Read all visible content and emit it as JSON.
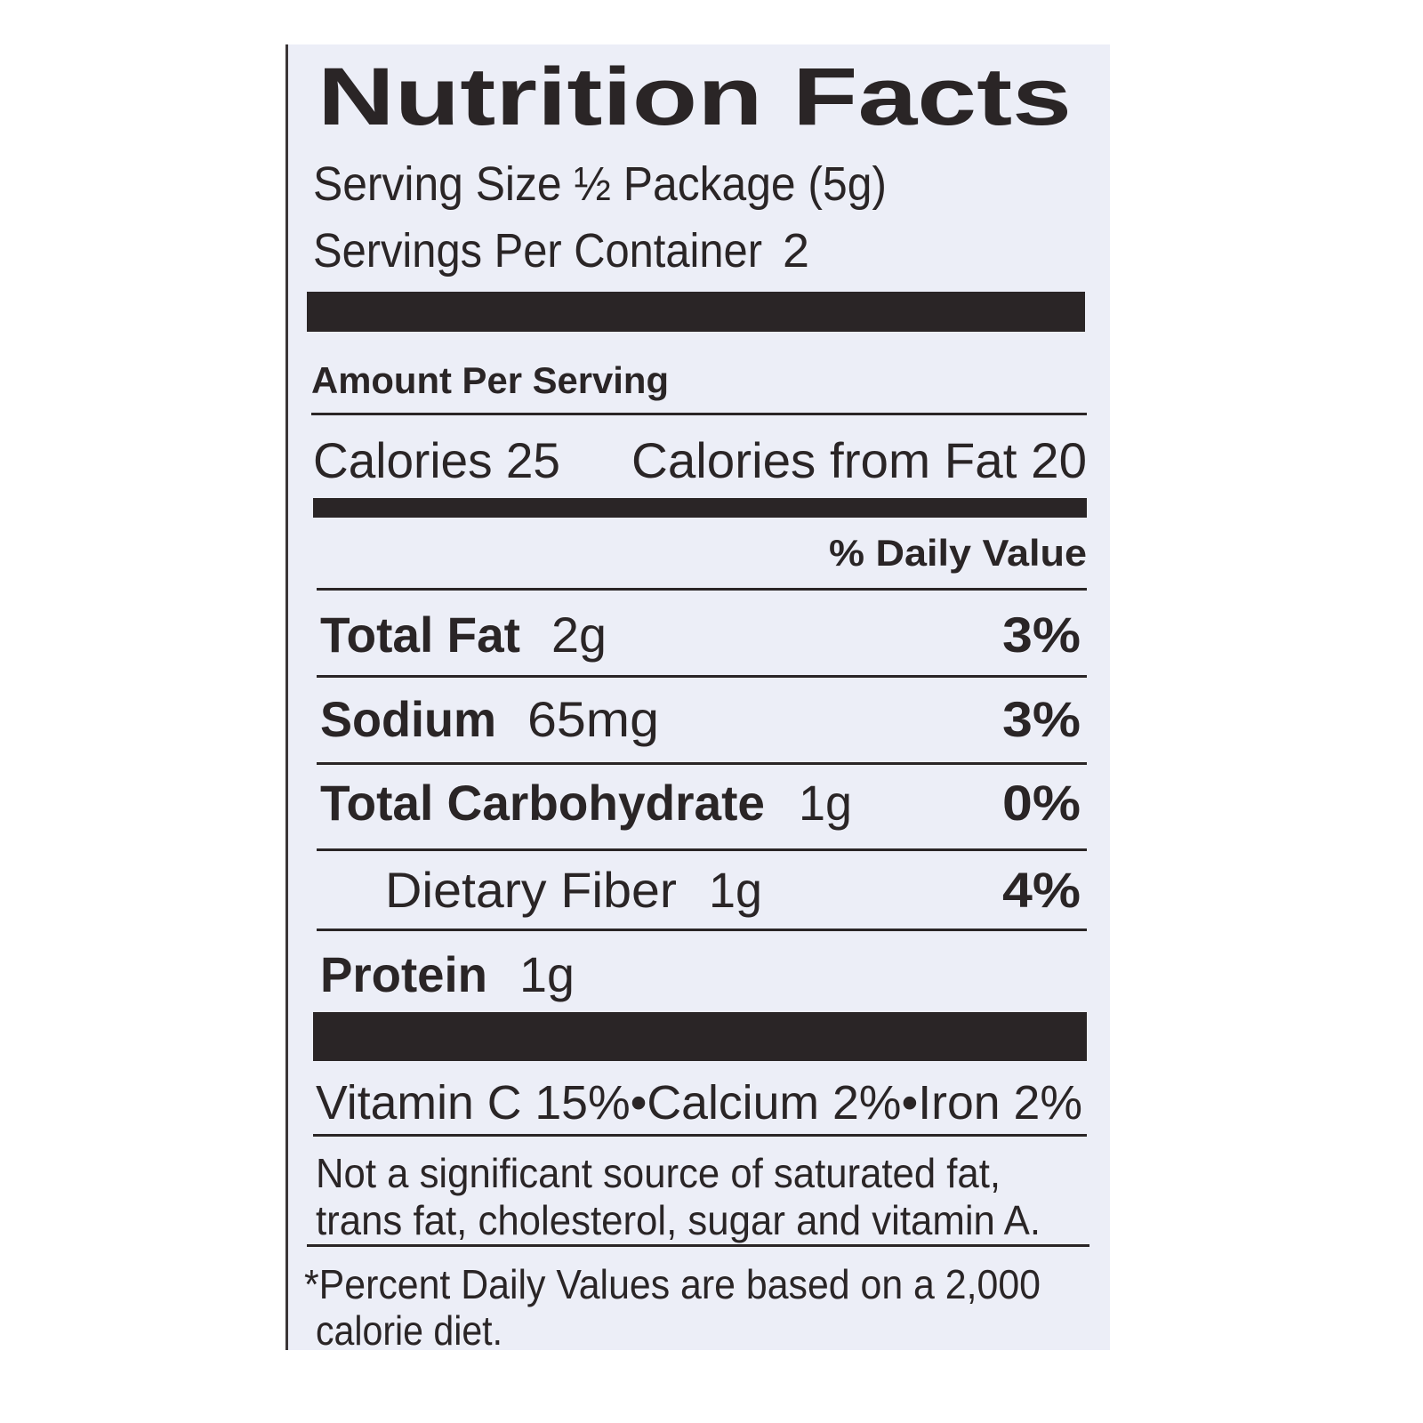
{
  "title": "Nutrition Facts",
  "serving_size": "Serving Size ½ Package (5g)",
  "servings_per_container": {
    "label": "Servings Per Container",
    "value": "2"
  },
  "amount_per_serving": "Amount Per Serving",
  "calories": "Calories 25",
  "calories_from_fat": "Calories from Fat 20",
  "daily_value_header": "% Daily Value",
  "nutrients": [
    {
      "name": "Total Fat",
      "amount": "2g",
      "dv": "3%"
    },
    {
      "name": "Sodium",
      "amount": "65mg",
      "dv": "3%"
    },
    {
      "name": "Total Carbohydrate",
      "amount": "1g",
      "dv": "0%"
    },
    {
      "name": "Dietary Fiber",
      "amount": "1g",
      "dv": "4%"
    },
    {
      "name": "Protein",
      "amount": "1g"
    }
  ],
  "vitamins": "Vitamin C 15%•Calcium 2%•Iron 2%",
  "note": [
    "Not a significant source of saturated fat,",
    "trans fat, cholesterol, sugar and vitamin A."
  ],
  "footnote": [
    "*Percent Daily Values are based on a 2,000",
    "calorie diet."
  ]
}
